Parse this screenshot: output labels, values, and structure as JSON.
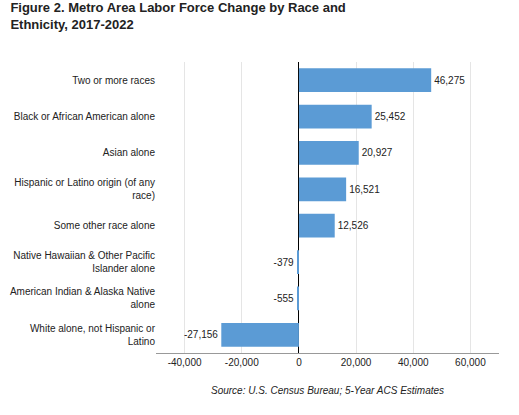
{
  "chart_data": {
    "type": "bar",
    "orientation": "horizontal",
    "title": "Figure 2. Metro Area Labor Force Change by Race and\nEthnicity, 2017-2022",
    "categories": [
      "Two or more races",
      "Black or African American alone",
      "Asian alone",
      "Hispanic or Latino origin (of any\nrace)",
      "Some other race alone",
      "Native Hawaiian & Other Pacific\nIslander alone",
      "American Indian & Alaska Native\nalone",
      "White alone, not Hispanic or\nLatino"
    ],
    "values": [
      46275,
      25452,
      20927,
      16521,
      12526,
      -379,
      -555,
      -27156
    ],
    "value_labels": [
      "46,275",
      "25,452",
      "20,927",
      "16,521",
      "12,526",
      "-379",
      "-555",
      "-27,156"
    ],
    "data_labels": true,
    "color": "#5B9BD5",
    "xlim": [
      -50000,
      70000
    ],
    "xticks": [
      {
        "value": -40000,
        "label": "-40,000"
      },
      {
        "value": -20000,
        "label": "-20,000"
      },
      0,
      {
        "value": 20000,
        "label": "20,000"
      },
      {
        "value": 40000,
        "label": "40,000"
      },
      {
        "value": 60000,
        "label": "60,000"
      }
    ],
    "grid": true,
    "annotation": "Source: U.S. Census Bureau; 5-Year ACS Estimates"
  }
}
